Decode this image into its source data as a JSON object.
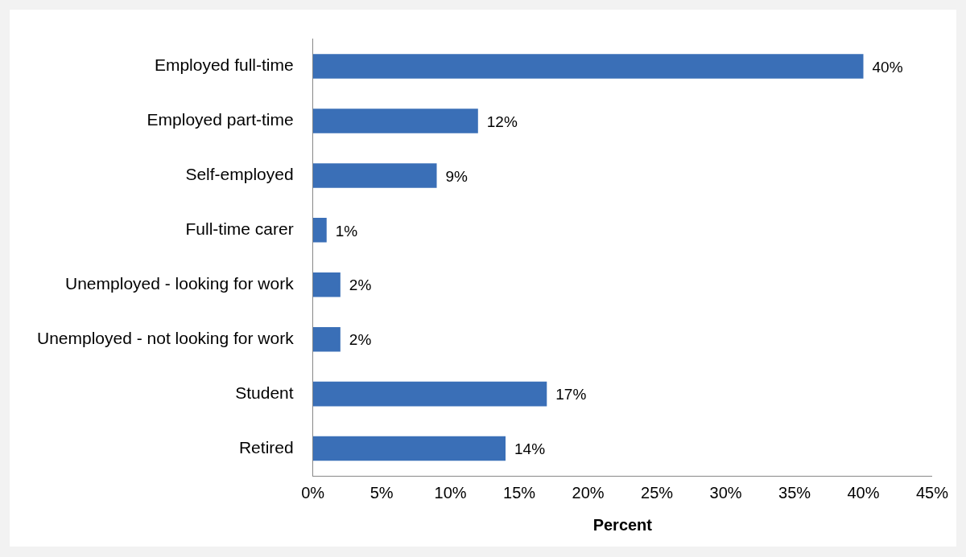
{
  "chart_data": {
    "type": "bar",
    "orientation": "horizontal",
    "xlabel": "Percent",
    "categories": [
      "Employed full-time",
      "Employed part-time",
      "Self-employed",
      "Full-time carer",
      "Unemployed - looking for work",
      "Unemployed - not looking for work",
      "Student",
      "Retired"
    ],
    "values": [
      40,
      12,
      9,
      1,
      2,
      2,
      17,
      14
    ],
    "value_labels": [
      "40%",
      "12%",
      "9%",
      "1%",
      "2%",
      "2%",
      "17%",
      "14%"
    ],
    "color": "#3a6fb7",
    "xlim": [
      0,
      45
    ],
    "xticks": [
      {
        "value": 0,
        "label": "0%"
      },
      {
        "value": 5,
        "label": "5%"
      },
      {
        "value": 10,
        "label": "10%"
      },
      {
        "value": 15,
        "label": "15%"
      },
      {
        "value": 20,
        "label": "20%"
      },
      {
        "value": 25,
        "label": "25%"
      },
      {
        "value": 30,
        "label": "30%"
      },
      {
        "value": 35,
        "label": "35%"
      },
      {
        "value": 40,
        "label": "40%"
      },
      {
        "value": 45,
        "label": "45%"
      }
    ],
    "grid": false,
    "legend": false
  }
}
